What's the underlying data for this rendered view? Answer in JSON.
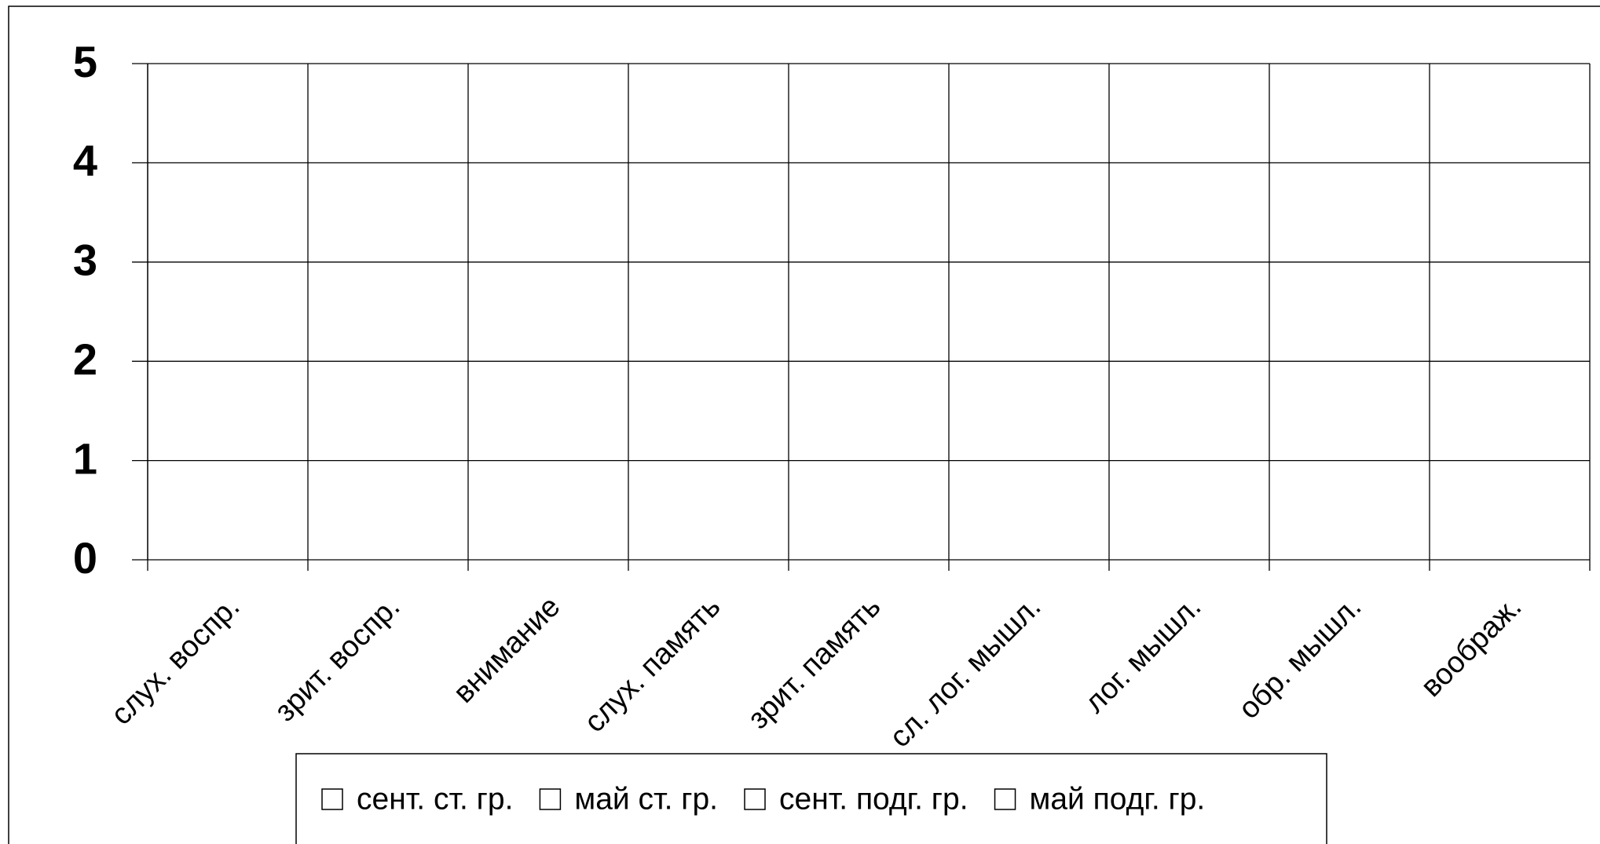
{
  "chart_data": {
    "type": "bar",
    "categories": [
      "слух. воспр.",
      "зрит. воспр.",
      "внимание",
      "слух. память",
      "зрит. память",
      "сл. лог. мышл.",
      "лог. мышл.",
      "обр. мышл.",
      "воображ."
    ],
    "series": [
      {
        "name": "сент. ст. гр.",
        "color": "#ffffff",
        "values": [
          null,
          null,
          null,
          null,
          null,
          null,
          null,
          null,
          null
        ]
      },
      {
        "name": "май ст. гр.",
        "color": "#ffffff",
        "values": [
          null,
          null,
          null,
          null,
          null,
          null,
          null,
          null,
          null
        ]
      },
      {
        "name": "сент. подг. гр.",
        "color": "#ffffff",
        "values": [
          null,
          null,
          null,
          null,
          null,
          null,
          null,
          null,
          null
        ]
      },
      {
        "name": "май подг. гр.",
        "color": "#ffffff",
        "values": [
          null,
          null,
          null,
          null,
          null,
          null,
          null,
          null,
          null
        ]
      }
    ],
    "ylim": [
      0,
      5
    ],
    "yticks": [
      0,
      1,
      2,
      3,
      4,
      5
    ],
    "grid": true,
    "legend": "bottom"
  }
}
